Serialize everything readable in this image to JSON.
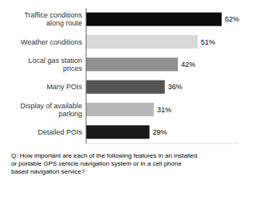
{
  "chart_data": {
    "type": "bar",
    "orientation": "horizontal",
    "categories": [
      "Detailed POIs",
      "Display of available\nparking",
      "Many POIs",
      "Local gas station\nprices",
      "Weather conditions",
      "Traffice conditions\nalong route"
    ],
    "values": [
      29,
      31,
      36,
      42,
      51,
      62
    ],
    "value_labels": [
      "29%",
      "31%",
      "36%",
      "42%",
      "51%",
      "62%"
    ],
    "colors": [
      "#1a1a1a",
      "#b8b8b8",
      "#555555",
      "#909090",
      "#d8d8d8",
      "#0d0d0d"
    ],
    "xlim": [
      0,
      70
    ],
    "data_labels": true,
    "tick_labels": "y",
    "annotations": [
      "Q: How important are each of the following features in an installed\nor portable GPS vehicle navigation system or in a cell phone\nbased navigation service?"
    ]
  }
}
